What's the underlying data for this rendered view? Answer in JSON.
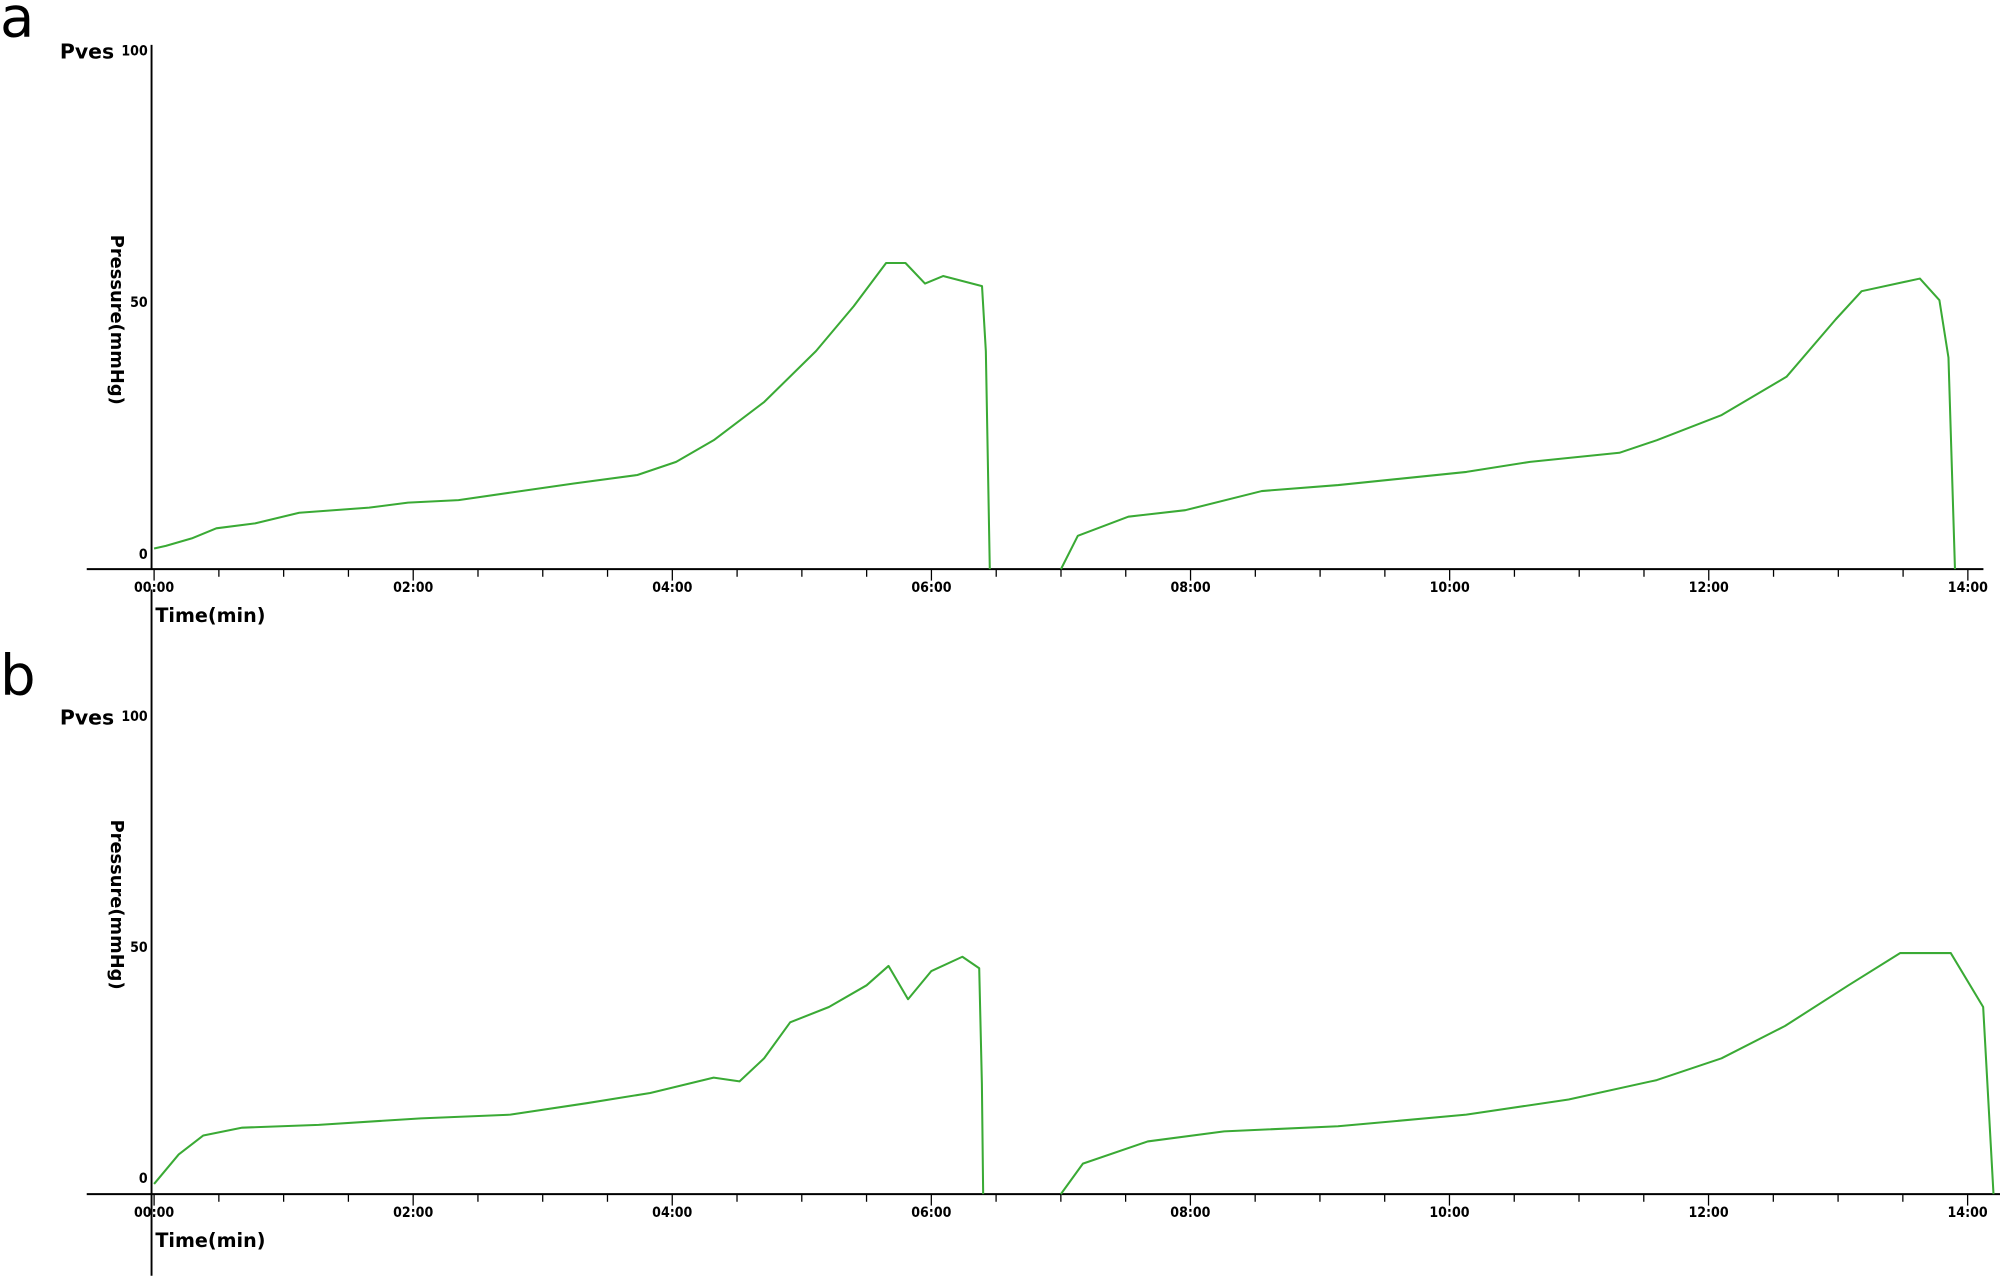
{
  "chart_data": [
    {
      "type": "line",
      "panel_label": "a",
      "xlabel": "Time(min)",
      "ylabel": "Pressure(mmHg)",
      "xlim": [
        -0.52,
        14.12
      ],
      "ylim": [
        -2.8,
        101.3
      ],
      "xticks": [
        {
          "value": 0,
          "label": "00:00"
        },
        {
          "value": 2,
          "label": "02:00"
        },
        {
          "value": 4,
          "label": "04:00"
        },
        {
          "value": 6,
          "label": "06:00"
        },
        {
          "value": 8,
          "label": "08:00"
        },
        {
          "value": 10,
          "label": "10:00"
        },
        {
          "value": 12,
          "label": "12:00"
        },
        {
          "value": 14,
          "label": "14:00"
        }
      ],
      "x_minor_ticks": [
        0.5,
        1,
        1.5,
        2.5,
        3,
        3.5,
        4.5,
        5,
        5.5,
        6.5,
        7,
        7.5,
        8.5,
        9,
        9.5,
        10.5,
        11,
        11.5,
        12.5,
        13,
        13.5
      ],
      "yticks": [
        0,
        50,
        100
      ],
      "x": [
        0,
        0.09,
        0.29,
        0.48,
        0.78,
        1.12,
        1.66,
        1.96,
        2.35,
        2.75,
        3.24,
        3.73,
        4.03,
        4.32,
        4.71,
        5.11,
        5.4,
        5.65,
        5.8,
        5.95,
        6.09,
        6.39,
        6.42,
        6.45,
        6.7,
        7.0,
        7.13,
        7.52,
        7.96,
        8.55,
        9.14,
        9.64,
        10.13,
        10.62,
        11.31,
        11.6,
        12.1,
        12.6,
        12.98,
        13.18,
        13.63,
        13.78,
        13.85,
        13.9
      ],
      "series": [
        {
          "name": "Pves",
          "color": "#3aaa35",
          "values": [
            1.3,
            1.8,
            3.3,
            5.3,
            6.3,
            8.4,
            9.4,
            10.4,
            10.9,
            12.4,
            14.2,
            15.9,
            18.5,
            22.8,
            30.4,
            40.5,
            49.4,
            58.0,
            58.0,
            53.9,
            55.4,
            53.4,
            40.5,
            -2.8,
            null,
            -2.8,
            3.8,
            7.6,
            8.9,
            12.7,
            13.9,
            15.2,
            16.5,
            18.5,
            20.3,
            22.8,
            27.8,
            35.4,
            46.8,
            52.4,
            54.9,
            50.6,
            39.2,
            -2.8
          ]
        }
      ]
    },
    {
      "type": "line",
      "panel_label": "b",
      "xlabel": "Time(min)",
      "ylabel": "Pressure(mmHg)",
      "xlim": [
        -0.52,
        14.25
      ],
      "ylim": [
        -3.3,
        127.6
      ],
      "xticks": [
        {
          "value": 0,
          "label": "00:00"
        },
        {
          "value": 2,
          "label": "02:00"
        },
        {
          "value": 4,
          "label": "04:00"
        },
        {
          "value": 6,
          "label": "06:00"
        },
        {
          "value": 8,
          "label": "08:00"
        },
        {
          "value": 10,
          "label": "10:00"
        },
        {
          "value": 12,
          "label": "12:00"
        },
        {
          "value": 14,
          "label": "14:00"
        }
      ],
      "x_minor_ticks": [
        0.5,
        1,
        1.5,
        2.5,
        3,
        3.5,
        4.5,
        5,
        5.5,
        6.5,
        7,
        7.5,
        8.5,
        9,
        9.5,
        10.5,
        11,
        11.5,
        12.5,
        13,
        13.5
      ],
      "yticks": [
        0,
        50,
        100
      ],
      "x": [
        0,
        0.19,
        0.38,
        0.68,
        1.27,
        2.06,
        2.75,
        3.34,
        3.83,
        4.32,
        4.52,
        4.71,
        4.91,
        5.21,
        5.5,
        5.67,
        5.82,
        6.0,
        6.24,
        6.37,
        6.39,
        6.4,
        6.7,
        7.0,
        7.17,
        7.67,
        8.26,
        9.14,
        10.13,
        10.92,
        11.6,
        12.1,
        12.59,
        13.08,
        13.48,
        13.87,
        14.12,
        14.2
      ],
      "series": [
        {
          "name": "Pves",
          "color": "#3aaa35",
          "values": [
            -1.1,
            5.3,
            9.4,
            11.1,
            11.7,
            13.1,
            13.9,
            16.4,
            18.6,
            21.9,
            21.1,
            26.1,
            33.9,
            37.2,
            41.9,
            46.1,
            38.9,
            45.0,
            48.1,
            45.6,
            20.6,
            -3.3,
            null,
            -3.3,
            3.3,
            8.1,
            10.3,
            11.4,
            13.9,
            17.2,
            21.4,
            26.1,
            33.1,
            41.9,
            48.9,
            48.9,
            37.2,
            -3.3
          ]
        }
      ]
    }
  ]
}
